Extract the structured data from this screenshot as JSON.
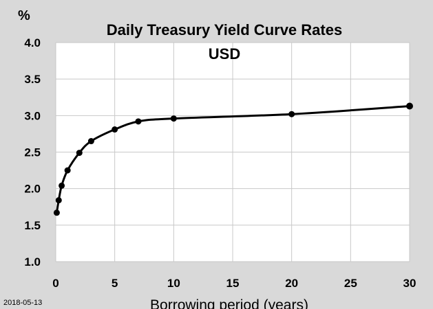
{
  "chart_data": {
    "type": "line",
    "title": "Daily Treasury Yield Curve Rates",
    "subtitle": "USD",
    "ylabel": "%",
    "xlabel": "Borrowing period (years)",
    "date_label": "2018-05-13",
    "xlim": [
      0,
      30
    ],
    "ylim": [
      1.0,
      4.0
    ],
    "xticks": [
      0,
      5,
      10,
      15,
      20,
      25,
      30
    ],
    "yticks": [
      1.0,
      1.5,
      2.0,
      2.5,
      3.0,
      3.5,
      4.0
    ],
    "ytick_labels": [
      "1.0",
      "1.5",
      "2.0",
      "2.5",
      "3.0",
      "3.5",
      "4.0"
    ],
    "grid": true,
    "series": [
      {
        "x": [
          0.083,
          0.25,
          0.5,
          1,
          2,
          3,
          5,
          7,
          10,
          20,
          30
        ],
        "y": [
          1.67,
          1.84,
          2.04,
          2.25,
          2.49,
          2.65,
          2.81,
          2.92,
          2.96,
          3.02,
          3.13
        ],
        "color": "#000000"
      }
    ]
  }
}
